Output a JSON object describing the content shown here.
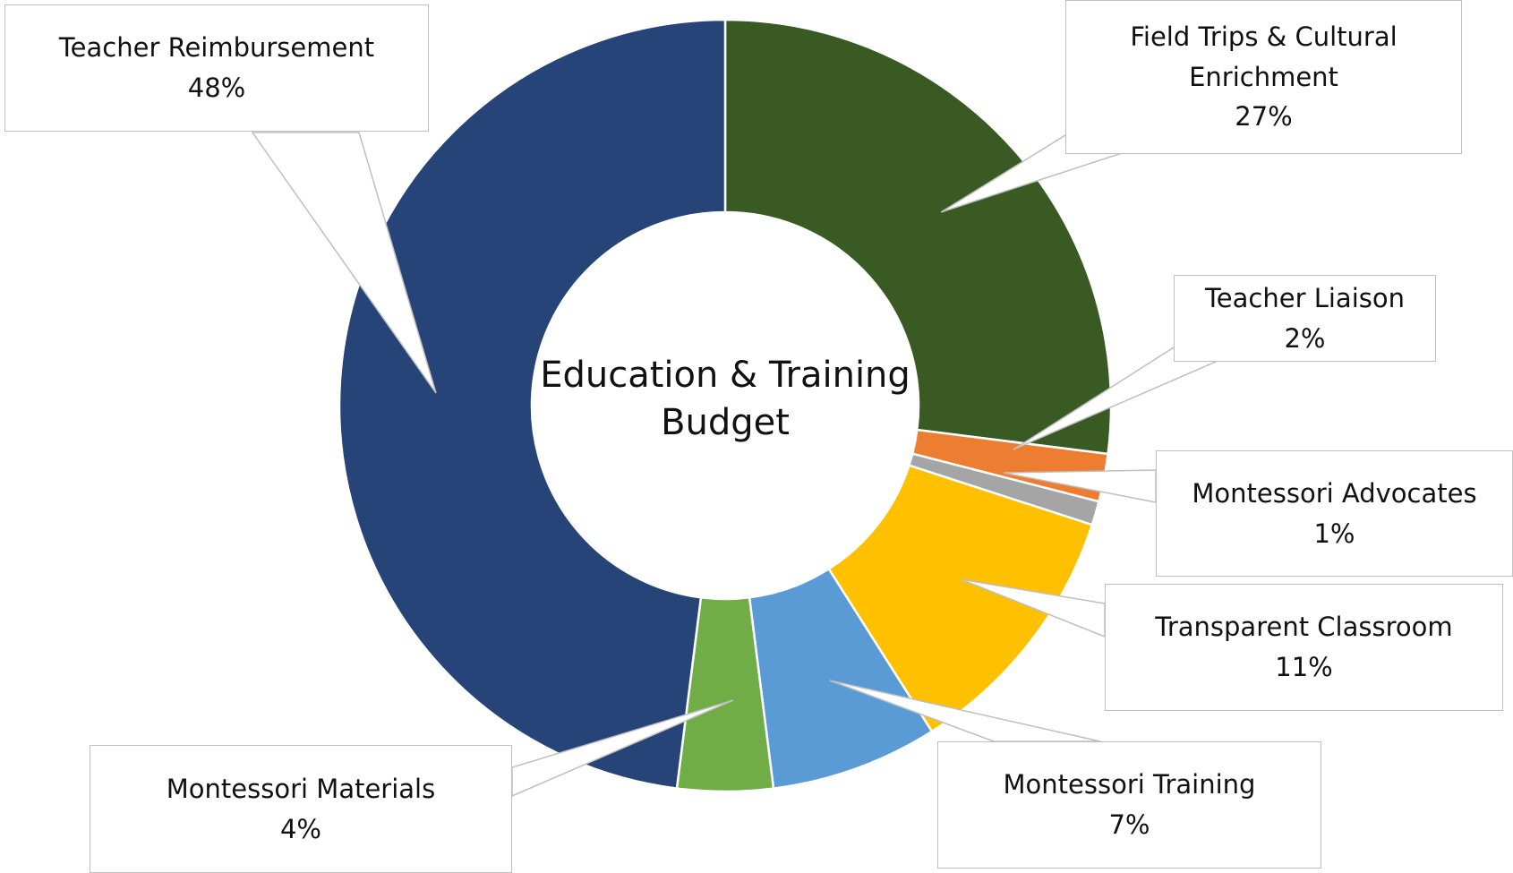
{
  "chart_data": {
    "type": "donut",
    "title": "Education & Training Budget",
    "categories": [
      "Field Trips & Cultural Enrichment",
      "Teacher Liaison",
      "Montessori Advocates",
      "Transparent Classroom",
      "Montessori Training",
      "Montessori Materials",
      "Teacher Reimbursement"
    ],
    "values": [
      27,
      2,
      1,
      11,
      7,
      4,
      48
    ],
    "value_labels": [
      "27%",
      "2%",
      "1%",
      "11%",
      "7%",
      "4%",
      "48%"
    ],
    "colors": [
      "#3a5a24",
      "#ed7d31",
      "#a5a5a5",
      "#ffc000",
      "#5b9bd5",
      "#70ad47",
      "#264478"
    ]
  }
}
